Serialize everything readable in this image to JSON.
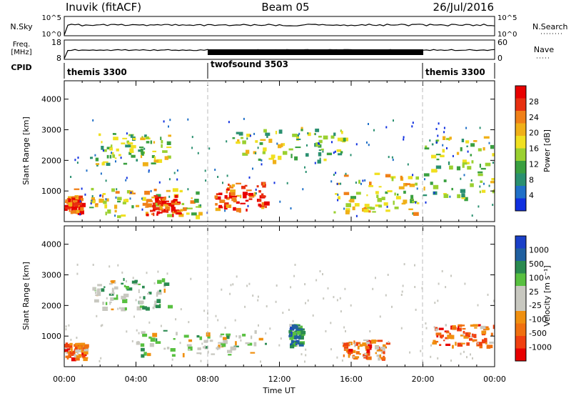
{
  "header": {
    "station": "Inuvik (fitACF)",
    "beam": "Beam 05",
    "date": "26/Jul/2016"
  },
  "nsky_panel": {
    "left_label": "N.Sky",
    "right_label": "N.Search",
    "left_ticks": [
      "10^5",
      "10^0"
    ],
    "right_ticks": [
      "10^5",
      "10^0"
    ]
  },
  "freq_panel": {
    "left_label_1": "Freq.",
    "left_label_2": "[MHz]",
    "right_label": "Nave",
    "left_ticks": [
      "18",
      "8"
    ],
    "right_ticks": [
      "60",
      "0"
    ]
  },
  "cpid_panel": {
    "label": "CPID",
    "segments": [
      {
        "label": "themis 3300"
      },
      {
        "label": "twofsound 3503"
      },
      {
        "label": "themis 3300"
      }
    ]
  },
  "chart_data": [
    {
      "type": "heatmap",
      "name": "power",
      "ylabel": "Slant Range [km]",
      "yticks": [
        1000,
        2000,
        3000,
        4000
      ],
      "xticks": [
        "00:00",
        "04:00",
        "08:00",
        "12:00",
        "16:00",
        "20:00",
        "00:00"
      ],
      "colorbar": {
        "label": "Power [dB]",
        "ticks": [
          "4",
          "8",
          "12",
          "16",
          "20",
          "24",
          "28"
        ],
        "colors": [
          "#1030e0",
          "#2070c8",
          "#2a9070",
          "#3aa040",
          "#9ad030",
          "#f0e020",
          "#f0b018",
          "#f08018",
          "#e83010",
          "#e80000"
        ]
      },
      "regions": [
        {
          "t0": 1.5,
          "t1": 5.8,
          "r0": 1900,
          "r1": 2900,
          "level": 4
        },
        {
          "t0": 0.0,
          "t1": 7.5,
          "r0": 200,
          "r1": 1100,
          "level": 5
        },
        {
          "t0": 8.3,
          "t1": 11.2,
          "r0": 400,
          "r1": 1300,
          "level": 8
        },
        {
          "t0": 4.5,
          "t1": 6.3,
          "r0": 250,
          "r1": 900,
          "level": 8
        },
        {
          "t0": 0.0,
          "t1": 0.9,
          "r0": 350,
          "r1": 850,
          "level": 8
        },
        {
          "t0": 9.3,
          "t1": 15.8,
          "r0": 2000,
          "r1": 3100,
          "level": 4
        },
        {
          "t0": 15.0,
          "t1": 19.8,
          "r0": 300,
          "r1": 1600,
          "level": 5
        },
        {
          "t0": 20.0,
          "t1": 24.0,
          "r0": 800,
          "r1": 2800,
          "level": 4
        }
      ]
    },
    {
      "type": "heatmap",
      "name": "velocity",
      "ylabel": "Slant Range [km]",
      "yticks": [
        1000,
        2000,
        3000,
        4000
      ],
      "xticks": [
        "00:00",
        "04:00",
        "08:00",
        "12:00",
        "16:00",
        "20:00",
        "00:00"
      ],
      "xlabel": "Time UT",
      "colorbar": {
        "label": "Velocity [m s⁻¹]",
        "ticks": [
          "1000",
          "500",
          "100",
          "25",
          "-25",
          "-100",
          "-500",
          "-1000"
        ],
        "colors": [
          "#1a40c8",
          "#2060a0",
          "#2a8a50",
          "#58c040",
          "#c8c8c0",
          "#c8c8c0",
          "#f09010",
          "#f07010",
          "#f04010",
          "#e80000"
        ]
      },
      "regions": [
        {
          "t0": 1.5,
          "t1": 5.8,
          "r0": 1900,
          "r1": 2900,
          "level": 4
        },
        {
          "t0": 4.0,
          "t1": 11.2,
          "r0": 400,
          "r1": 1200,
          "level": 4
        },
        {
          "t0": 0.0,
          "t1": 1.2,
          "r0": 300,
          "r1": 800,
          "level": 7
        },
        {
          "t0": 15.5,
          "t1": 18.0,
          "r0": 300,
          "r1": 900,
          "level": 7
        },
        {
          "t0": 20.5,
          "t1": 24.0,
          "r0": 700,
          "r1": 1400,
          "level": 7
        },
        {
          "t0": 12.5,
          "t1": 13.2,
          "r0": 700,
          "r1": 1400,
          "level": 2
        }
      ]
    }
  ]
}
